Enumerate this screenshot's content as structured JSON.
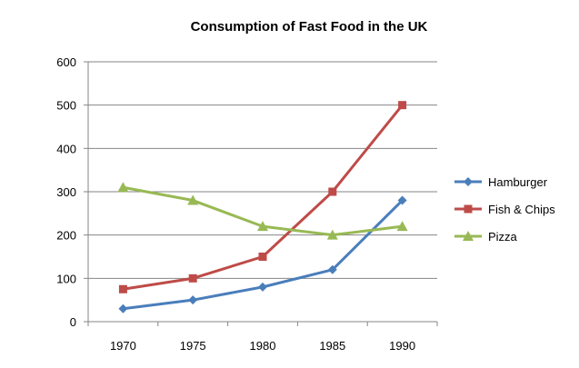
{
  "chart_data": {
    "type": "line",
    "title": "Consumption of Fast Food in the UK",
    "xlabel": "",
    "ylabel": "",
    "categories": [
      "1970",
      "1975",
      "1980",
      "1985",
      "1990"
    ],
    "ylim": [
      0,
      600
    ],
    "yticks": [
      "0",
      "100",
      "200",
      "300",
      "400",
      "500",
      "600"
    ],
    "grid": true,
    "legend_position": "right",
    "series": [
      {
        "name": "Hamburger",
        "values": [
          30,
          50,
          80,
          120,
          280
        ],
        "color": "#4a7ebb",
        "marker": "diamond"
      },
      {
        "name": "Fish & Chips",
        "values": [
          75,
          100,
          150,
          300,
          500
        ],
        "color": "#be4b48",
        "marker": "square"
      },
      {
        "name": "Pizza",
        "values": [
          310,
          280,
          220,
          200,
          220
        ],
        "color": "#98b954",
        "marker": "triangle"
      }
    ]
  }
}
